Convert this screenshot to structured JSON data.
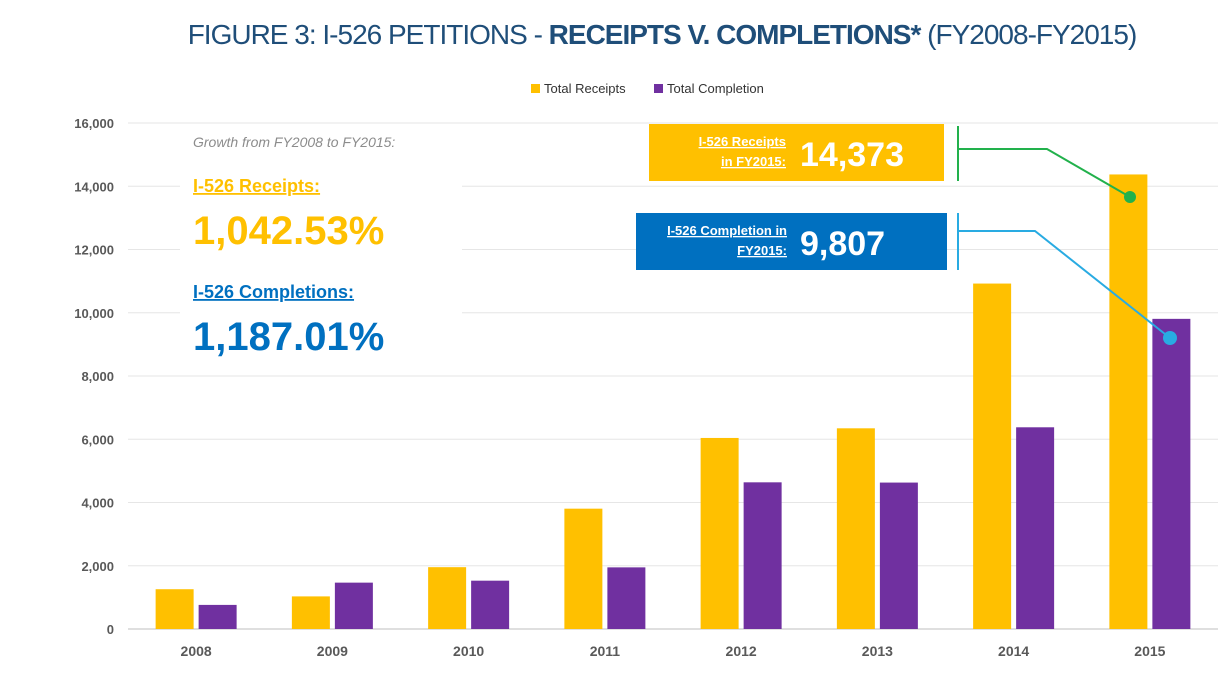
{
  "colors": {
    "title": "#1f4e79",
    "receipts": "#ffc000",
    "completion": "#7030a0",
    "completion_text": "#0070c0",
    "receipts_callout_line": "#22b14c",
    "completion_callout_line": "#29abe2",
    "grid": "#e6e6e6"
  },
  "title": {
    "part1": "FIGURE 3: I-526 PETITIONS - ",
    "part2": "RECEIPTS V. COMPLETIONS*",
    "part3": " (FY2008-FY2015)"
  },
  "growth": {
    "note": "Growth from FY2008 to FY2015:",
    "receipts_label": "I-526 Receipts:",
    "receipts_value": "1,042.53%",
    "completions_label": "I-526 Completions:",
    "completions_value": "1,187.01%"
  },
  "callouts": {
    "receipts": {
      "label_line1": "I-526 Receipts",
      "label_line2": "in FY2015:",
      "value": "14,373"
    },
    "completion": {
      "label_line1": "I-526 Completion in",
      "label_line2": "FY2015:",
      "value": "9,807"
    }
  },
  "chart_data": {
    "type": "bar",
    "title": "FIGURE 3: I-526 PETITIONS - RECEIPTS V. COMPLETIONS* (FY2008-FY2015)",
    "xlabel": "",
    "ylabel": "",
    "categories": [
      "2008",
      "2009",
      "2010",
      "2011",
      "2012",
      "2013",
      "2014",
      "2015"
    ],
    "series": [
      {
        "name": "Total Receipts",
        "values": [
          1258,
          1031,
          1955,
          3805,
          6041,
          6346,
          10923,
          14373
        ]
      },
      {
        "name": "Total Completion",
        "values": [
          762,
          1466,
          1528,
          1949,
          4638,
          4630,
          6378,
          9807
        ]
      }
    ],
    "ylim": [
      0,
      16000
    ],
    "yticks": [
      0,
      2000,
      4000,
      6000,
      8000,
      10000,
      12000,
      14000,
      16000
    ],
    "ytick_labels": [
      "0",
      "2,000",
      "4,000",
      "6,000",
      "8,000",
      "10,000",
      "12,000",
      "14,000",
      "16,000"
    ],
    "grid": true,
    "legend_position": "top-center"
  }
}
